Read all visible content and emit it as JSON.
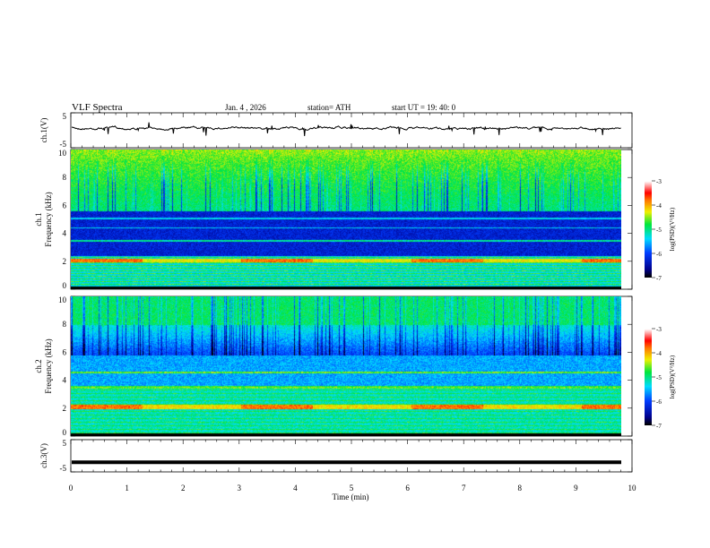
{
  "header": {
    "title": "VLF  Spectra",
    "date": "Jan. 4  , 2026",
    "station": "station= ATH",
    "start": "start  UT  =    19: 40: 0"
  },
  "chart_data": [
    {
      "type": "line",
      "name": "ch1-waveform",
      "ylabel": "ch.1(V)",
      "ylim": [
        -5,
        5
      ],
      "yticks": [
        "5",
        "-5"
      ],
      "xlim": [
        0,
        10
      ]
    },
    {
      "type": "heatmap",
      "name": "ch1-spectrogram",
      "ylabel": "ch.1\nFrequency  (kHz)",
      "ylabel_line1": "ch.1",
      "ylabel_line2": "Frequency  (kHz)",
      "ylim": [
        0,
        10
      ],
      "yticks": [
        "0",
        "2",
        "4",
        "6",
        "8",
        "10"
      ],
      "xlim": [
        0,
        10
      ],
      "colorbar": {
        "label": "log(PSD)(V²/Hz)",
        "range": [
          -7,
          -3
        ],
        "ticks": [
          "-3",
          "-4",
          "-5",
          "-6",
          "-7"
        ]
      }
    },
    {
      "type": "heatmap",
      "name": "ch2-spectrogram",
      "ylabel_line1": "ch.2",
      "ylabel_line2": "Frequency  (kHz)",
      "ylim": [
        0,
        10
      ],
      "yticks": [
        "0",
        "2",
        "4",
        "6",
        "8",
        "10"
      ],
      "xlim": [
        0,
        10
      ],
      "colorbar": {
        "label": "log(PSD)(V²/Hz)",
        "range": [
          -7,
          -3
        ],
        "ticks": [
          "-3",
          "-4",
          "-5",
          "-6",
          "-7"
        ]
      }
    },
    {
      "type": "line",
      "name": "ch3-waveform",
      "ylabel": "ch.3(V)",
      "ylim": [
        -5,
        5
      ],
      "yticks": [
        "5",
        "-5"
      ],
      "xlim": [
        0,
        10
      ],
      "approx_level": -2
    }
  ],
  "xaxis": {
    "label": "Time  (min)",
    "ticks": [
      "0",
      "1",
      "2",
      "3",
      "4",
      "5",
      "6",
      "7",
      "8",
      "9",
      "10"
    ]
  }
}
